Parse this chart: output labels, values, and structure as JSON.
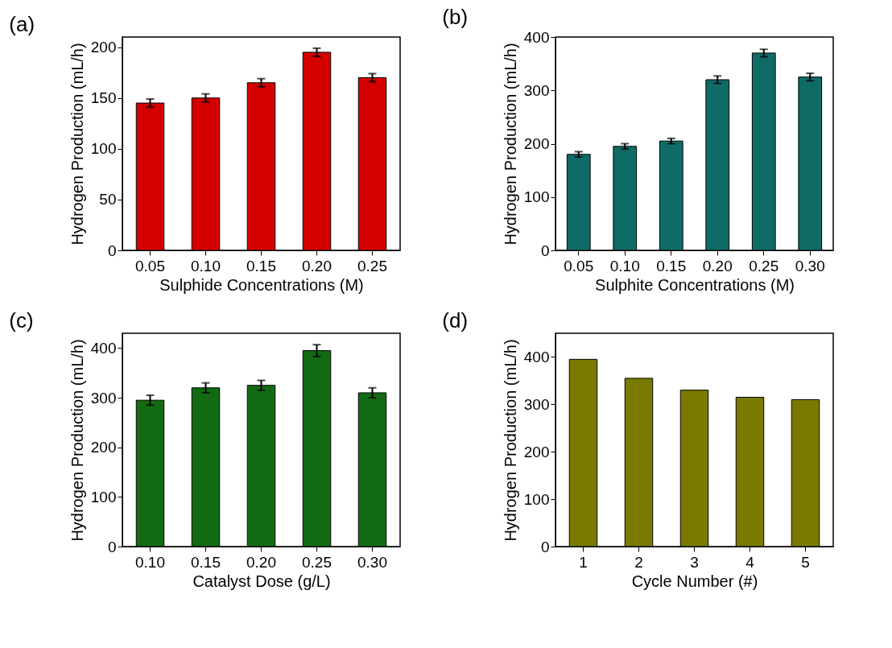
{
  "chart_data": [
    {
      "type": "bar",
      "title": "(a)",
      "xlabel": "Sulphide Concentrations (M)",
      "ylabel": "Hydrogen Production (mL/h)",
      "categories": [
        "0.05",
        "0.10",
        "0.15",
        "0.20",
        "0.25"
      ],
      "values": [
        145,
        150,
        165,
        195,
        170
      ],
      "errors": [
        4,
        4,
        4,
        4,
        4
      ],
      "color": "#d40000",
      "ylim": [
        0,
        210
      ],
      "yticks": [
        0,
        50,
        100,
        150,
        200
      ],
      "grid": false
    },
    {
      "type": "bar",
      "title": "(b)",
      "xlabel": "Sulphite Concentrations (M)",
      "ylabel": "Hydrogen Production (mL/h)",
      "categories": [
        "0.05",
        "0.10",
        "0.15",
        "0.20",
        "0.25",
        "0.30"
      ],
      "values": [
        180,
        195,
        205,
        320,
        370,
        325
      ],
      "errors": [
        5,
        5,
        5,
        7,
        7,
        7
      ],
      "color": "#0f6b66",
      "ylim": [
        0,
        400
      ],
      "yticks": [
        0,
        100,
        200,
        300,
        400
      ],
      "grid": false
    },
    {
      "type": "bar",
      "title": "(c)",
      "xlabel": "Catalyst Dose (g/L)",
      "ylabel": "Hydrogen Production (mL/h)",
      "categories": [
        "0.10",
        "0.15",
        "0.20",
        "0.25",
        "0.30"
      ],
      "values": [
        295,
        320,
        325,
        395,
        310
      ],
      "errors": [
        10,
        10,
        10,
        12,
        10
      ],
      "color": "#126b12",
      "ylim": [
        0,
        430
      ],
      "yticks": [
        0,
        100,
        200,
        300,
        400
      ],
      "grid": false
    },
    {
      "type": "bar",
      "title": "(d)",
      "xlabel": "Cycle Number (#)",
      "ylabel": "Hydrogen Production (mL/h)",
      "categories": [
        "1",
        "2",
        "3",
        "4",
        "5"
      ],
      "values": [
        395,
        355,
        330,
        315,
        310
      ],
      "color": "#7a7a00",
      "ylim": [
        0,
        450
      ],
      "yticks": [
        0,
        100,
        200,
        300,
        400
      ],
      "grid": false
    }
  ]
}
